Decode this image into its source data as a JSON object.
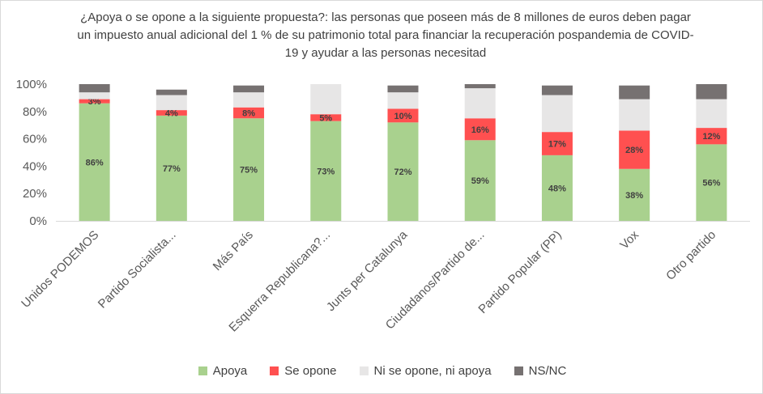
{
  "chart_data": {
    "type": "bar",
    "stacked": true,
    "title": "¿Apoya o se opone a la siguiente propuesta?: las personas que poseen más de 8 millones de euros deben pagar un impuesto anual adicional del 1 % de su patrimonio total para financiar la recuperación pospandemia de COVID-19 y ayudar a las personas necesitad",
    "categories": [
      "Unidos PODEMOS",
      "Partido Socialista...",
      "Más País",
      "Esquerra Republicana?...",
      "Junts per Catalunya",
      "Ciudadanos/Partido de...",
      "Partido Popular (PP)",
      "Vox",
      "Otro partido"
    ],
    "series": [
      {
        "name": "Apoya",
        "color": "#a9d18e",
        "values": [
          86,
          77,
          75,
          73,
          72,
          59,
          48,
          38,
          56
        ],
        "labels": [
          "86%",
          "77%",
          "75%",
          "73%",
          "72%",
          "59%",
          "48%",
          "38%",
          "56%"
        ]
      },
      {
        "name": "Se opone",
        "color": "#ff5050",
        "values": [
          3,
          4,
          8,
          5,
          10,
          16,
          17,
          28,
          12
        ],
        "labels": [
          "3%",
          "4%",
          "8%",
          "5%",
          "10%",
          "16%",
          "17%",
          "28%",
          "12%"
        ]
      },
      {
        "name": "Ni se opone, ni apoya",
        "color": "#e7e6e6",
        "values": [
          5,
          11,
          11,
          22,
          12,
          22,
          27,
          23,
          21
        ]
      },
      {
        "name": "NS/NC",
        "color": "#767171",
        "values": [
          6,
          4,
          5,
          0,
          5,
          3,
          7,
          10,
          11
        ]
      }
    ],
    "yticks": [
      "0%",
      "20%",
      "40%",
      "60%",
      "80%",
      "100%"
    ],
    "ylim": [
      0,
      100
    ],
    "grid": false,
    "legend_position": "bottom"
  }
}
